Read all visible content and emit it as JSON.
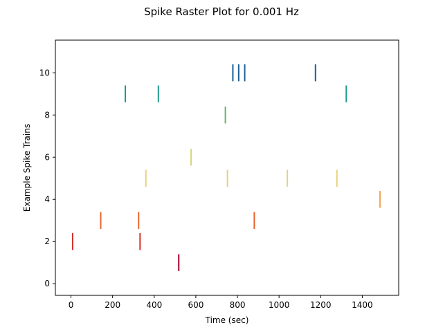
{
  "chart_data": {
    "type": "scatter",
    "title": "Spike Raster Plot for 0.001 Hz",
    "xlabel": "Time (sec)",
    "ylabel": "Example Spike Trains",
    "xlim": [
      -75,
      1575
    ],
    "ylim": [
      -0.55,
      11.55
    ],
    "xticks": [
      0,
      200,
      400,
      600,
      800,
      1000,
      1200,
      1400
    ],
    "yticks": [
      0,
      2,
      4,
      6,
      8,
      10
    ],
    "grid": false,
    "series": [
      {
        "train": 0,
        "color": "#a50026",
        "x": []
      },
      {
        "train": 1,
        "color": "#a50026",
        "x": [
          518
        ]
      },
      {
        "train": 2,
        "color": "#d62f27",
        "x": [
          8,
          332
        ]
      },
      {
        "train": 3,
        "color": "#e8642d",
        "x": [
          143,
          325,
          881
        ]
      },
      {
        "train": 4,
        "color": "#f7a255",
        "x": [
          1485
        ]
      },
      {
        "train": 5,
        "color": "#e8d07a",
        "x": [
          360,
          752,
          1040,
          1278
        ]
      },
      {
        "train": 6,
        "color": "#d9d681",
        "x": [
          577
        ]
      },
      {
        "train": 7,
        "color": "#a9d38a",
        "x": []
      },
      {
        "train": 8,
        "color": "#5fb56a",
        "x": [
          742
        ]
      },
      {
        "train": 9,
        "color": "#1e9c89",
        "x": [
          261,
          420,
          1323
        ]
      },
      {
        "train": 10,
        "color": "#1a5f96",
        "x": [
          778,
          806,
          835,
          1175
        ]
      }
    ]
  }
}
